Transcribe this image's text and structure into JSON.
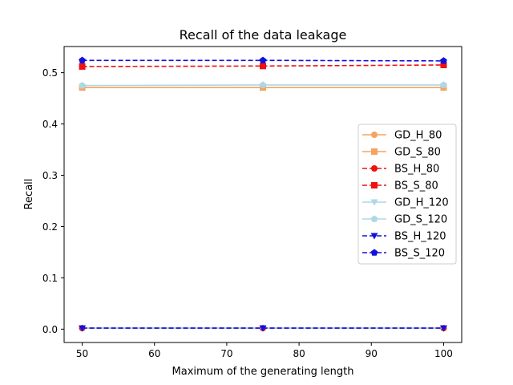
{
  "chart_data": {
    "type": "line",
    "title": "Recall of the data leakage",
    "xlabel": "Maximum of the generating length",
    "ylabel": "Recall",
    "xlim": [
      47.5,
      102.5
    ],
    "ylim": [
      -0.026,
      0.551
    ],
    "xticks": [
      50,
      60,
      70,
      80,
      90,
      100
    ],
    "xtick_labels": [
      "50",
      "60",
      "70",
      "80",
      "90",
      "100"
    ],
    "yticks": [
      0.0,
      0.1,
      0.2,
      0.3,
      0.4,
      0.5
    ],
    "ytick_labels": [
      "0.0",
      "0.1",
      "0.2",
      "0.3",
      "0.4",
      "0.5"
    ],
    "grid": false,
    "legend_position": "center-right",
    "x": [
      50,
      75,
      100
    ],
    "series": [
      {
        "name": "GD_H_80",
        "values": [
          0.002,
          0.002,
          0.002
        ],
        "color": "#f4a460",
        "marker": "circle",
        "dashed": false
      },
      {
        "name": "GD_S_80",
        "values": [
          0.471,
          0.471,
          0.471
        ],
        "color": "#f4a460",
        "marker": "square",
        "dashed": false
      },
      {
        "name": "BS_H_80",
        "values": [
          0.002,
          0.002,
          0.002
        ],
        "color": "#ee1111",
        "marker": "circle",
        "dashed": true
      },
      {
        "name": "BS_S_80",
        "values": [
          0.512,
          0.513,
          0.515
        ],
        "color": "#ee1111",
        "marker": "square",
        "dashed": true
      },
      {
        "name": "GD_H_120",
        "values": [
          0.002,
          0.002,
          0.002
        ],
        "color": "#add8e6",
        "marker": "triangle-down",
        "dashed": false
      },
      {
        "name": "GD_S_120",
        "values": [
          0.475,
          0.476,
          0.476
        ],
        "color": "#add8e6",
        "marker": "pentagon",
        "dashed": false
      },
      {
        "name": "BS_H_120",
        "values": [
          0.002,
          0.002,
          0.002
        ],
        "color": "#1111dd",
        "marker": "triangle-down",
        "dashed": true
      },
      {
        "name": "BS_S_120",
        "values": [
          0.524,
          0.524,
          0.523
        ],
        "color": "#1111dd",
        "marker": "pentagon",
        "dashed": true
      }
    ]
  }
}
